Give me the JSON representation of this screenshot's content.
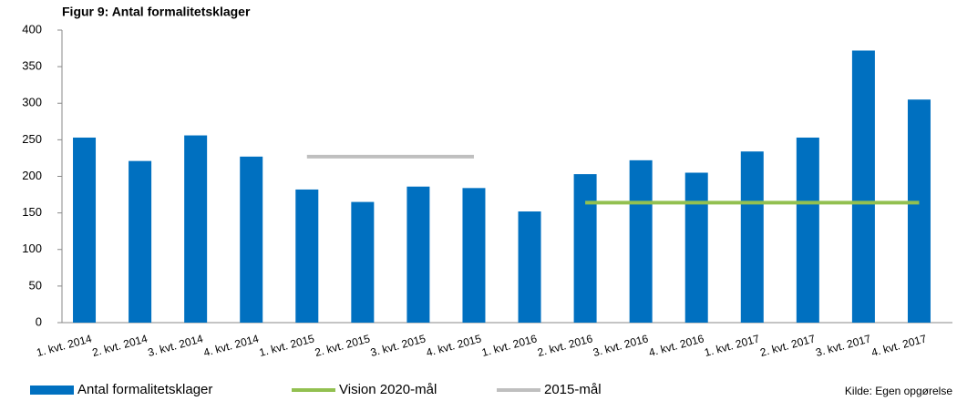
{
  "chart_data": {
    "type": "bar",
    "title": "Figur 9: Antal formalitetsklager",
    "categories": [
      "1. kvt. 2014",
      "2. kvt. 2014",
      "3. kvt. 2014",
      "4. kvt. 2014",
      "1. kvt. 2015",
      "2. kvt. 2015",
      "3. kvt. 2015",
      "4. kvt. 2015",
      "1. kvt. 2016",
      "2. kvt. 2016",
      "3. kvt. 2016",
      "4. kvt. 2016",
      "1. kvt. 2017",
      "2. kvt. 2017",
      "3. kvt. 2017",
      "4. kvt. 2017"
    ],
    "series": [
      {
        "name": "Antal formalitetsklager",
        "type": "bar",
        "color": "#0070c0",
        "values": [
          253,
          221,
          256,
          227,
          182,
          165,
          186,
          184,
          152,
          203,
          222,
          205,
          234,
          253,
          372,
          305
        ]
      },
      {
        "name": "Vision 2020-mål",
        "type": "line",
        "color": "#92c050",
        "values": [
          null,
          null,
          null,
          null,
          null,
          null,
          null,
          null,
          null,
          164,
          164,
          164,
          164,
          164,
          164,
          164
        ]
      },
      {
        "name": "2015-mål",
        "type": "line",
        "color": "#bfbfbf",
        "values": [
          null,
          null,
          null,
          null,
          227,
          227,
          227,
          227,
          null,
          null,
          null,
          null,
          null,
          null,
          null,
          null
        ]
      }
    ],
    "ylim": [
      0,
      400
    ],
    "yticks": [
      0,
      50,
      100,
      150,
      200,
      250,
      300,
      350,
      400
    ],
    "grid": false,
    "legend": "bottom",
    "source": "Kilde: Egen opgørelse"
  }
}
